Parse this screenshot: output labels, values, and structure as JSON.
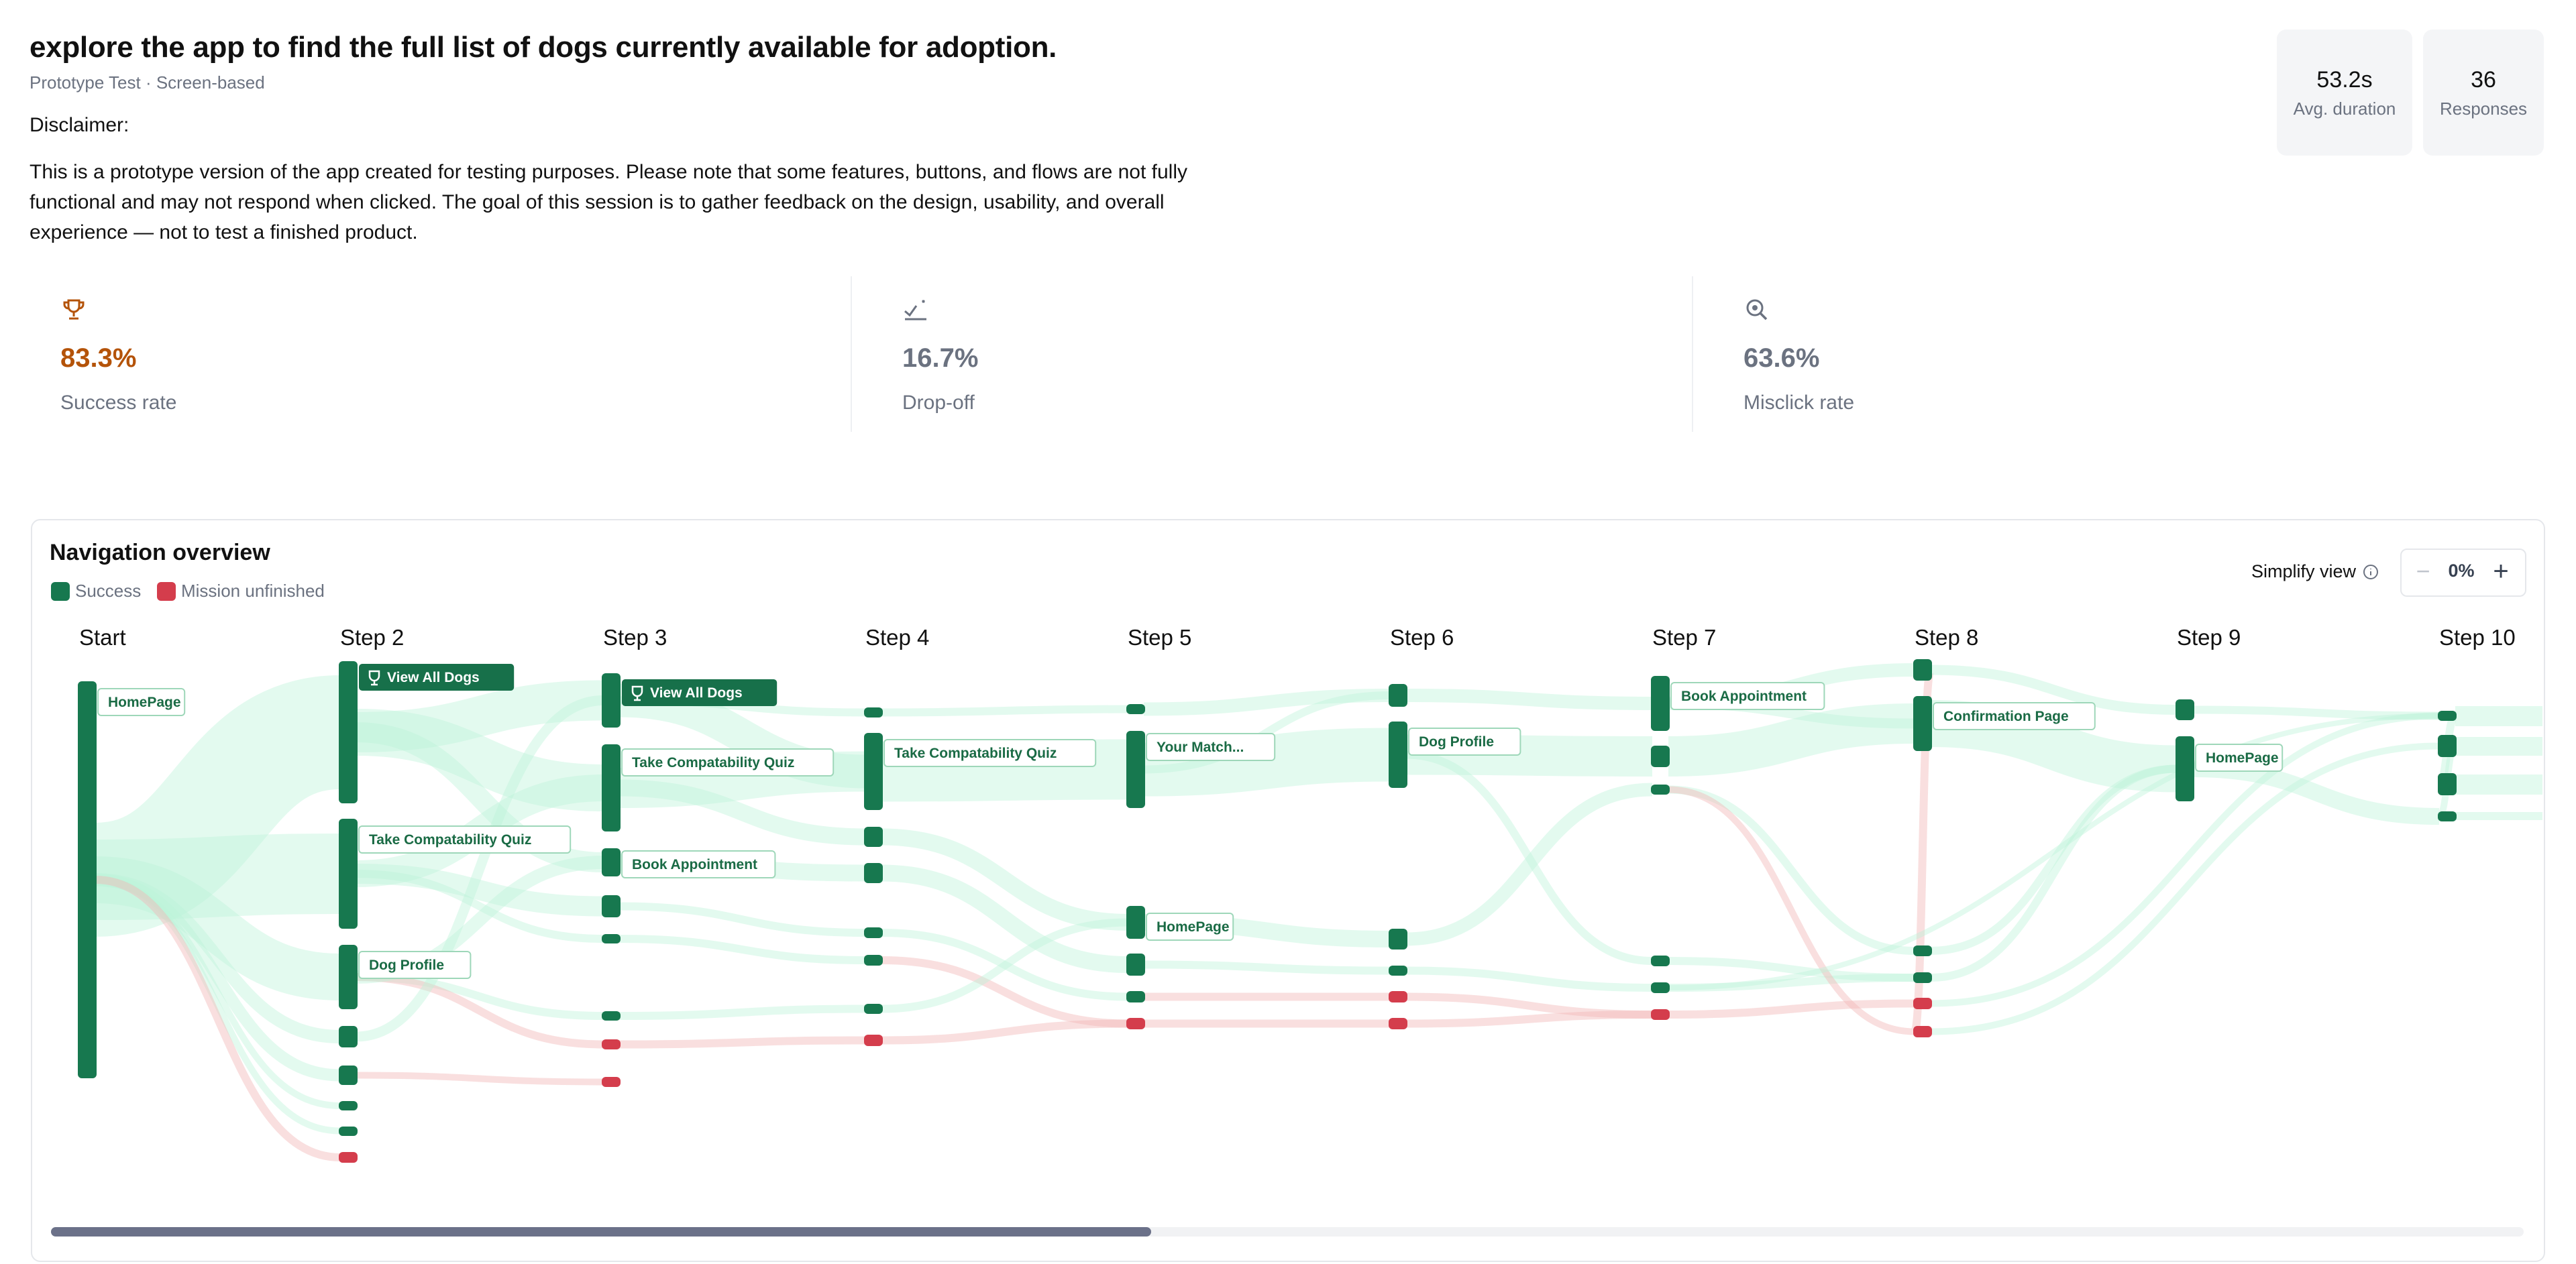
{
  "task": {
    "title": "explore the app to find the full list of dogs currently available for adoption.",
    "subtitle": "Prototype Test · Screen-based",
    "disclaimer_label": "Disclaimer:",
    "disclaimer_body": "This is a prototype version of the app created for testing purposes. Please note that some features, buttons, and flows are not fully functional and may not respond when clicked. The goal of this session is to gather feedback on the design, usability, and overall experience — not to test a finished product."
  },
  "stats": {
    "duration_value": "53.2s",
    "duration_label": "Avg. duration",
    "responses_value": "36",
    "responses_label": "Responses"
  },
  "metrics": [
    {
      "icon": "trophy-icon",
      "value": "83.3%",
      "label": "Success rate",
      "color": "#b45309"
    },
    {
      "icon": "drop-off-icon",
      "value": "16.7%",
      "label": "Drop-off",
      "color": "#6b7280"
    },
    {
      "icon": "misclick-icon",
      "value": "63.6%",
      "label": "Misclick rate",
      "color": "#6b7280"
    }
  ],
  "navigation": {
    "title": "Navigation overview",
    "legend": {
      "success": "Success",
      "unfinished": "Mission unfinished"
    },
    "simplify_label": "Simplify view",
    "zoom_value": "0%",
    "zoom_minus": "−",
    "zoom_plus": "+",
    "steps": [
      "Start",
      "Step 2",
      "Step 3",
      "Step 4",
      "Step 5",
      "Step 6",
      "Step 7",
      "Step 8",
      "Step 9",
      "Step 10"
    ],
    "node_labels": [
      {
        "text": "HomePage",
        "trophy": false
      },
      {
        "text": "View All Dogs",
        "trophy": true
      },
      {
        "text": "Take Compatability Quiz",
        "trophy": false
      },
      {
        "text": "Dog Profile",
        "trophy": false
      },
      {
        "text": "View All Dogs",
        "trophy": true
      },
      {
        "text": "Take Compatability Quiz",
        "trophy": false
      },
      {
        "text": "Book Appointment",
        "trophy": false
      },
      {
        "text": "Take Compatability Quiz",
        "trophy": false
      },
      {
        "text": "Your Match...",
        "trophy": false
      },
      {
        "text": "HomePage",
        "trophy": false
      },
      {
        "text": "Dog Profile",
        "trophy": false
      },
      {
        "text": "Book Appointment",
        "trophy": false
      },
      {
        "text": "Confirmation Page",
        "trophy": false
      },
      {
        "text": "HomePage",
        "trophy": false
      }
    ]
  },
  "colors": {
    "success": "#17784f",
    "unfinished": "#d43d4c",
    "flow_success": "#bdf2d8",
    "flow_unfinished": "#f2b8b8",
    "success_rate": "#b45309"
  }
}
